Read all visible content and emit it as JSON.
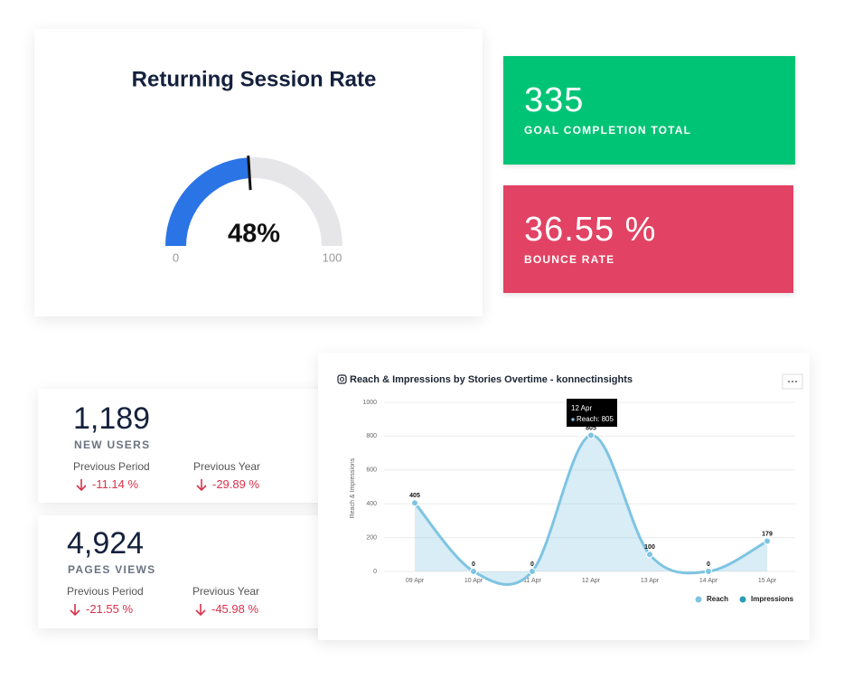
{
  "chart_data": [
    {
      "type": "gauge",
      "title": "Returning Session Rate",
      "value": 48,
      "value_labels": "48%",
      "ylim": [
        0,
        100
      ],
      "yticks": [
        0,
        100
      ],
      "color": "#2a74e6",
      "track_color": "#e6e6e9"
    },
    {
      "type": "line",
      "title": "Reach & Impressions by Stories Overtime - konnectinsights",
      "y_label": "Reach & Impressions",
      "categories": [
        "09 Apr",
        "10 Apr",
        "11 Apr",
        "12 Apr",
        "13 Apr",
        "14 Apr",
        "15 Apr"
      ],
      "series": [
        {
          "name": "Reach",
          "color": "#7ec4e2",
          "values": [
            405,
            0,
            0,
            805,
            100,
            0,
            179
          ]
        },
        {
          "name": "Impressions",
          "color": "#2a9bb5",
          "values": [
            null,
            null,
            null,
            null,
            null,
            null,
            null
          ]
        }
      ],
      "ylim": [
        0,
        1000
      ],
      "yticks": [
        0,
        200,
        400,
        600,
        800,
        1000
      ],
      "grid": true,
      "area": true,
      "tooltip": {
        "title": "12 Apr",
        "text": "Reach: 805"
      }
    }
  ],
  "cards": [
    {
      "value": "335",
      "label": "GOAL COMPLETION TOTAL",
      "color": "#00c475"
    },
    {
      "value": "36.55 %",
      "label": "BOUNCE RATE",
      "color": "#e24263"
    }
  ],
  "stats": [
    {
      "value": "1,189",
      "label": "NEW USERS",
      "comparisons": [
        {
          "label": "Previous Period",
          "value": "-11.14 %"
        },
        {
          "label": "Previous Year",
          "value": "-29.89 %"
        }
      ]
    },
    {
      "value": "4,924",
      "label": "PAGES VIEWS",
      "comparisons": [
        {
          "label": "Previous Period",
          "value": "-21.55 %"
        },
        {
          "label": "Previous Year",
          "value": "-45.98 %"
        }
      ]
    }
  ]
}
